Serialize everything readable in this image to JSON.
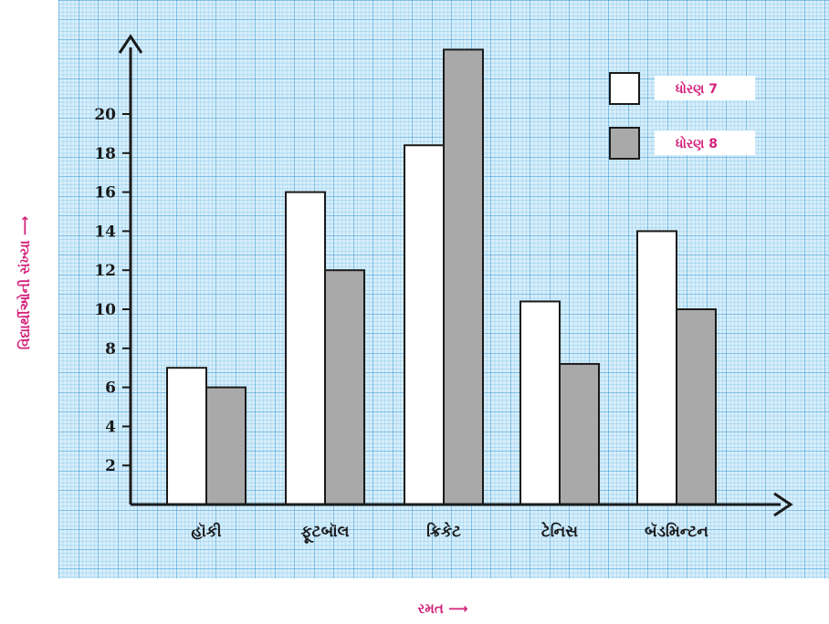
{
  "chart_data": {
    "type": "bar",
    "categories": [
      "હૉકી",
      "ફૂટબૉલ",
      "ક્રિકેટ",
      "ટેનિસ",
      "બૅડમિન્ટન"
    ],
    "series": [
      {
        "name": "ધોરણ 7",
        "values": [
          7,
          16,
          18.4,
          10.4,
          14
        ],
        "color": "#ffffff"
      },
      {
        "name": "ધોરણ 8",
        "values": [
          6,
          12,
          23.3,
          7.2,
          10
        ],
        "color": "#a9a9a9"
      }
    ],
    "xlabel": "રમત ⟶",
    "ylabel": "વિદ્યાર્થીઓની સંખ્યા ⟶",
    "yticks": [
      2,
      4,
      6,
      8,
      10,
      12,
      14,
      16,
      18,
      20
    ],
    "ylim": [
      0,
      24.5
    ],
    "grid": true,
    "grid_color": "#5ab4e6",
    "legend_position": "top-right",
    "accent_color": "#d4217b"
  }
}
